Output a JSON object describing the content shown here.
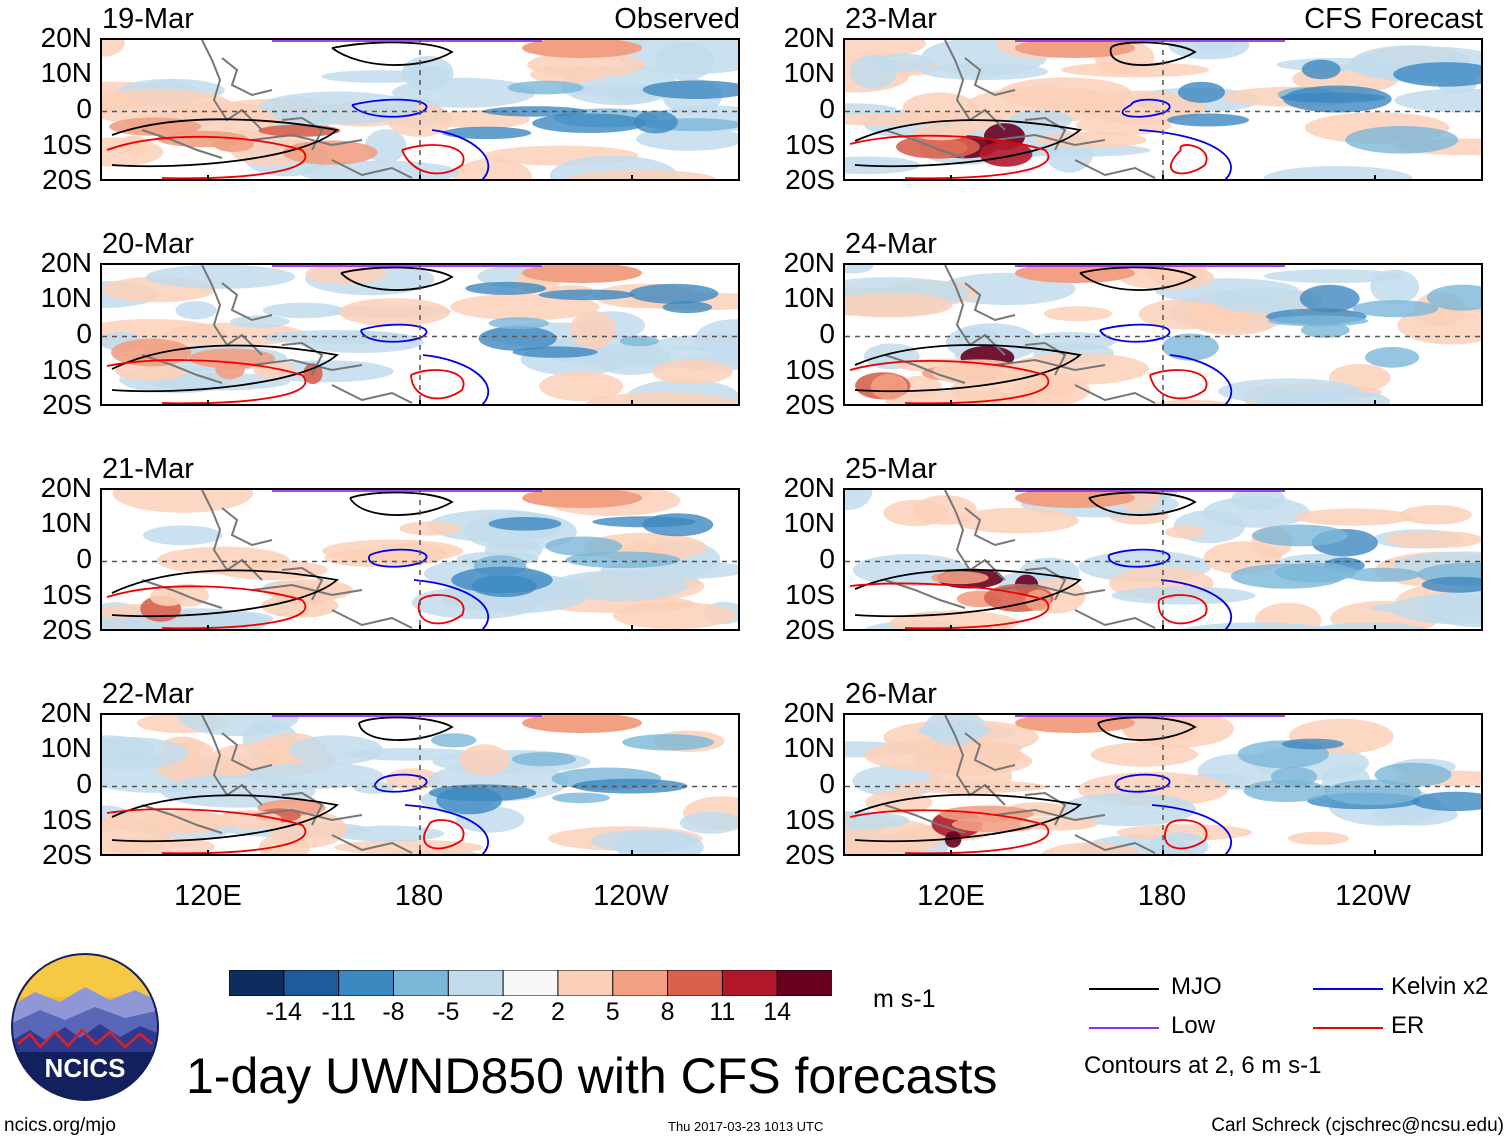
{
  "panels": [
    {
      "date": "19-Mar",
      "corner_label": "Observed"
    },
    {
      "date": "20-Mar",
      "corner_label": ""
    },
    {
      "date": "21-Mar",
      "corner_label": ""
    },
    {
      "date": "22-Mar",
      "corner_label": ""
    },
    {
      "date": "23-Mar",
      "corner_label": "CFS Forecast"
    },
    {
      "date": "24-Mar",
      "corner_label": ""
    },
    {
      "date": "25-Mar",
      "corner_label": ""
    },
    {
      "date": "26-Mar",
      "corner_label": ""
    }
  ],
  "lat_ticks": [
    "20N",
    "10N",
    "0",
    "10S",
    "20S"
  ],
  "lon_ticks": [
    "120E",
    "180",
    "120W"
  ],
  "colorbar": {
    "unit": "m s-1",
    "labels": [
      "-14",
      "-11",
      "-8",
      "-5",
      "-2",
      "2",
      "5",
      "8",
      "11",
      "14"
    ],
    "colors": [
      "#0c2d5e",
      "#1f5a9a",
      "#3c88c0",
      "#7bb6d8",
      "#c2dcec",
      "#f7f7f7",
      "#fbd0b9",
      "#f1a083",
      "#d9624f",
      "#b2182b",
      "#67001f"
    ]
  },
  "legend": {
    "items": [
      {
        "label": "MJO",
        "color": "#000000"
      },
      {
        "label": "Kelvin x2",
        "color": "#0000ee"
      },
      {
        "label": "Low",
        "color": "#9a2ef0"
      },
      {
        "label": "ER",
        "color": "#ee0000"
      }
    ],
    "note": "Contours at 2, 6 m s-1"
  },
  "title": "1-day UWND850 with CFS forecasts",
  "logo_text": "NCICS",
  "footer": {
    "left": "ncics.org/mjo",
    "center": "Thu 2017-03-23 1013 UTC",
    "right": "Carl Schreck (cjschrec@ncsu.edu)"
  }
}
